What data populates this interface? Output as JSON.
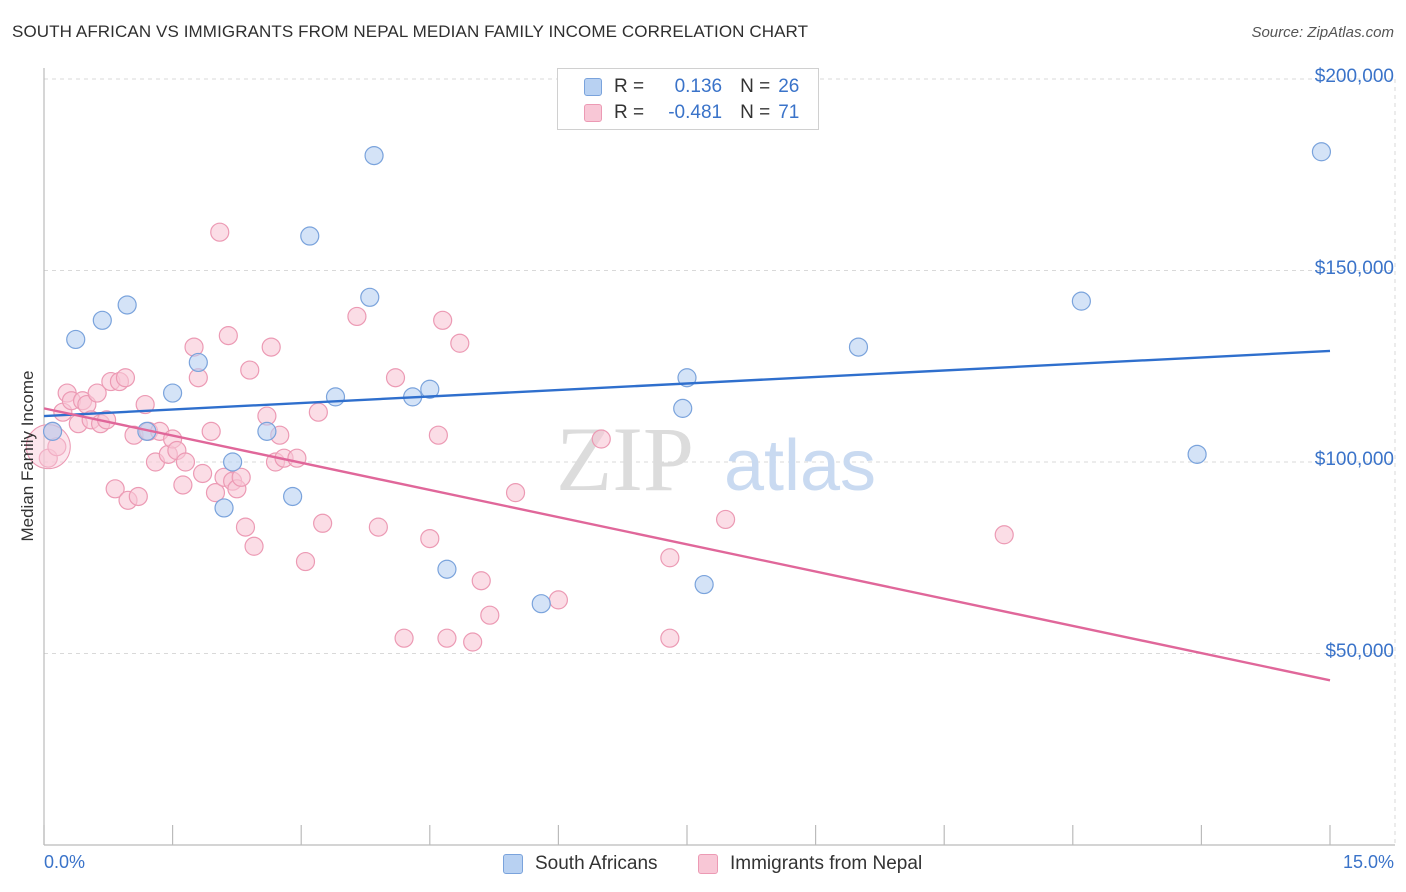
{
  "header": {
    "title": "SOUTH AFRICAN VS IMMIGRANTS FROM NEPAL MEDIAN FAMILY INCOME CORRELATION CHART",
    "source": "Source: ZipAtlas.com"
  },
  "watermark": {
    "zip": "ZIP",
    "atlas": "atlas"
  },
  "legend": {
    "rows": [
      {
        "r_label": "R =",
        "r_value": "0.136",
        "n_label": "N =",
        "n_value": "26"
      },
      {
        "r_label": "R =",
        "r_value": "-0.481",
        "n_label": "N =",
        "n_value": "71"
      }
    ]
  },
  "bottom_legend": {
    "series1": "South Africans",
    "series2": "Immigrants from Nepal"
  },
  "colors": {
    "blue_fill": "#b8d1f2",
    "blue_stroke": "#7aa3dc",
    "blue_line": "#2f6fcd",
    "pink_fill": "#f8c7d6",
    "pink_stroke": "#ec9ab4",
    "pink_line": "#e0679a",
    "axis_text": "#3a73c9",
    "grid": "#d9d9d9"
  },
  "chart_data": {
    "type": "scatter",
    "title": "SOUTH AFRICAN VS IMMIGRANTS FROM NEPAL MEDIAN FAMILY INCOME CORRELATION CHART",
    "xlabel": "",
    "ylabel": "Median Family Income",
    "xlim": [
      0,
      15
    ],
    "ylim": [
      0,
      200000
    ],
    "x_tick_labels": [
      "0.0%",
      "15.0%"
    ],
    "y_ticks": [
      50000,
      100000,
      150000,
      200000
    ],
    "y_tick_labels": [
      "$50,000",
      "$100,000",
      "$150,000",
      "$200,000"
    ],
    "grid": true,
    "legend_position": "top-center",
    "series": [
      {
        "name": "South Africans",
        "r": 0.136,
        "n": 26,
        "trend": {
          "x": [
            0,
            15
          ],
          "y": [
            112000,
            129000
          ]
        },
        "points": [
          {
            "x": 0.1,
            "y": 108000
          },
          {
            "x": 0.37,
            "y": 132000
          },
          {
            "x": 0.68,
            "y": 137000
          },
          {
            "x": 0.97,
            "y": 141000
          },
          {
            "x": 1.2,
            "y": 108000
          },
          {
            "x": 1.5,
            "y": 118000
          },
          {
            "x": 1.8,
            "y": 126000
          },
          {
            "x": 2.2,
            "y": 100000
          },
          {
            "x": 2.1,
            "y": 88000
          },
          {
            "x": 2.6,
            "y": 108000
          },
          {
            "x": 2.9,
            "y": 91000
          },
          {
            "x": 3.1,
            "y": 159000
          },
          {
            "x": 3.4,
            "y": 117000
          },
          {
            "x": 3.8,
            "y": 143000
          },
          {
            "x": 3.85,
            "y": 180000
          },
          {
            "x": 4.3,
            "y": 117000
          },
          {
            "x": 4.5,
            "y": 119000
          },
          {
            "x": 4.7,
            "y": 72000
          },
          {
            "x": 5.8,
            "y": 63000
          },
          {
            "x": 7.45,
            "y": 114000
          },
          {
            "x": 7.5,
            "y": 122000
          },
          {
            "x": 7.7,
            "y": 68000
          },
          {
            "x": 9.5,
            "y": 130000
          },
          {
            "x": 12.1,
            "y": 142000
          },
          {
            "x": 13.45,
            "y": 102000
          },
          {
            "x": 14.9,
            "y": 181000
          }
        ]
      },
      {
        "name": "Immigrants from Nepal",
        "r": -0.481,
        "n": 71,
        "trend": {
          "x": [
            0,
            15
          ],
          "y": [
            114000,
            43000
          ]
        },
        "points": [
          {
            "x": 0.05,
            "y": 101000
          },
          {
            "x": 0.1,
            "y": 108000
          },
          {
            "x": 0.15,
            "y": 104000
          },
          {
            "x": 0.22,
            "y": 113000
          },
          {
            "x": 0.27,
            "y": 118000
          },
          {
            "x": 0.32,
            "y": 116000
          },
          {
            "x": 0.4,
            "y": 110000
          },
          {
            "x": 0.45,
            "y": 116000
          },
          {
            "x": 0.5,
            "y": 115000
          },
          {
            "x": 0.55,
            "y": 111000
          },
          {
            "x": 0.62,
            "y": 118000
          },
          {
            "x": 0.66,
            "y": 110000
          },
          {
            "x": 0.73,
            "y": 111000
          },
          {
            "x": 0.78,
            "y": 121000
          },
          {
            "x": 0.83,
            "y": 93000
          },
          {
            "x": 0.88,
            "y": 121000
          },
          {
            "x": 0.95,
            "y": 122000
          },
          {
            "x": 0.98,
            "y": 90000
          },
          {
            "x": 1.05,
            "y": 107000
          },
          {
            "x": 1.1,
            "y": 91000
          },
          {
            "x": 1.18,
            "y": 115000
          },
          {
            "x": 1.22,
            "y": 108000
          },
          {
            "x": 1.3,
            "y": 100000
          },
          {
            "x": 1.35,
            "y": 108000
          },
          {
            "x": 1.45,
            "y": 102000
          },
          {
            "x": 1.5,
            "y": 106000
          },
          {
            "x": 1.55,
            "y": 103000
          },
          {
            "x": 1.62,
            "y": 94000
          },
          {
            "x": 1.65,
            "y": 100000
          },
          {
            "x": 1.75,
            "y": 130000
          },
          {
            "x": 1.8,
            "y": 122000
          },
          {
            "x": 1.85,
            "y": 97000
          },
          {
            "x": 1.95,
            "y": 108000
          },
          {
            "x": 2.0,
            "y": 92000
          },
          {
            "x": 2.05,
            "y": 160000
          },
          {
            "x": 2.1,
            "y": 96000
          },
          {
            "x": 2.15,
            "y": 133000
          },
          {
            "x": 2.2,
            "y": 95000
          },
          {
            "x": 2.25,
            "y": 93000
          },
          {
            "x": 2.3,
            "y": 96000
          },
          {
            "x": 2.35,
            "y": 83000
          },
          {
            "x": 2.4,
            "y": 124000
          },
          {
            "x": 2.45,
            "y": 78000
          },
          {
            "x": 2.6,
            "y": 112000
          },
          {
            "x": 2.65,
            "y": 130000
          },
          {
            "x": 2.7,
            "y": 100000
          },
          {
            "x": 2.75,
            "y": 107000
          },
          {
            "x": 2.8,
            "y": 101000
          },
          {
            "x": 2.95,
            "y": 101000
          },
          {
            "x": 3.05,
            "y": 74000
          },
          {
            "x": 3.2,
            "y": 113000
          },
          {
            "x": 3.25,
            "y": 84000
          },
          {
            "x": 3.65,
            "y": 138000
          },
          {
            "x": 3.9,
            "y": 83000
          },
          {
            "x": 4.1,
            "y": 122000
          },
          {
            "x": 4.2,
            "y": 54000
          },
          {
            "x": 4.5,
            "y": 80000
          },
          {
            "x": 4.6,
            "y": 107000
          },
          {
            "x": 4.65,
            "y": 137000
          },
          {
            "x": 4.7,
            "y": 54000
          },
          {
            "x": 4.85,
            "y": 131000
          },
          {
            "x": 5.0,
            "y": 53000
          },
          {
            "x": 5.1,
            "y": 69000
          },
          {
            "x": 5.2,
            "y": 60000
          },
          {
            "x": 5.5,
            "y": 92000
          },
          {
            "x": 6.0,
            "y": 64000
          },
          {
            "x": 6.5,
            "y": 106000
          },
          {
            "x": 7.3,
            "y": 75000
          },
          {
            "x": 7.3,
            "y": 54000
          },
          {
            "x": 7.95,
            "y": 85000
          },
          {
            "x": 11.2,
            "y": 81000
          }
        ]
      }
    ]
  }
}
